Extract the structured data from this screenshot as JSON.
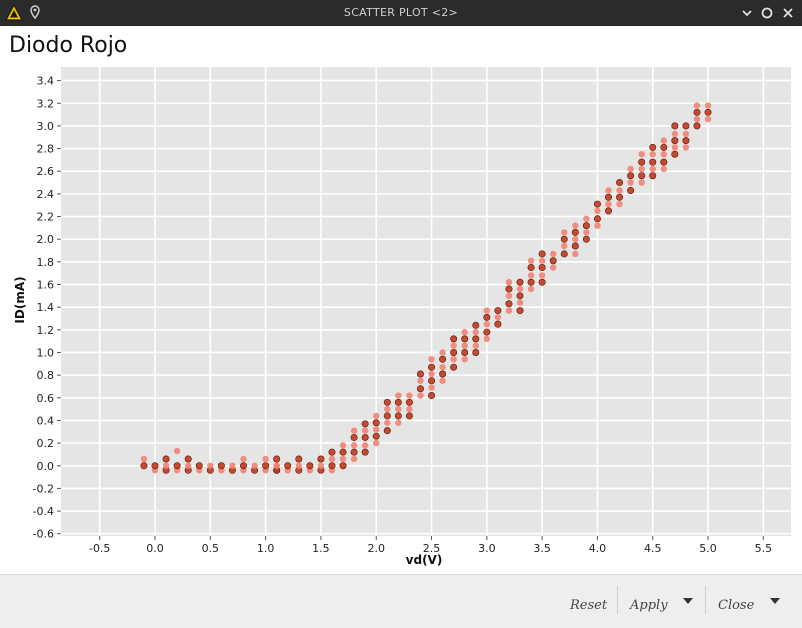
{
  "window": {
    "title": "SCATTER PLOT <2>"
  },
  "footer": {
    "reset_label": "Reset",
    "apply_label": "Apply",
    "close_label": "Close"
  },
  "colors": {
    "panel_bg": "#e5e5e5",
    "point_dark": "#c0391b",
    "point_light": "#ee8374",
    "titlebar": "#2b2b2b"
  },
  "chart_data": {
    "type": "scatter",
    "title": "Diodo Rojo",
    "xlabel": "vd(V)",
    "ylabel": "ID(mA)",
    "xlim": [
      -0.85,
      5.75
    ],
    "ylim": [
      -0.62,
      3.52
    ],
    "xticks": [
      -0.5,
      0.0,
      0.5,
      1.0,
      1.5,
      2.0,
      2.5,
      3.0,
      3.5,
      4.0,
      4.5,
      5.0,
      5.5
    ],
    "xtick_labels": [
      "-0.5",
      "0.0",
      "0.5",
      "1.0",
      "1.5",
      "2.0",
      "2.5",
      "3.0",
      "3.5",
      "4.0",
      "4.5",
      "5.0",
      "5.5"
    ],
    "yticks": [
      -0.6,
      -0.4,
      -0.2,
      0.0,
      0.2,
      0.4,
      0.6,
      0.8,
      1.0,
      1.2,
      1.4,
      1.6,
      1.8,
      2.0,
      2.2,
      2.4,
      2.6,
      2.8,
      3.0,
      3.2,
      3.4
    ],
    "ytick_labels": [
      "-0.6",
      "-0.4",
      "-0.2",
      "0.0",
      "0.2",
      "0.4",
      "0.6",
      "0.8",
      "1.0",
      "1.2",
      "1.4",
      "1.6",
      "1.8",
      "2.0",
      "2.2",
      "2.4",
      "2.6",
      "2.8",
      "3.0",
      "3.2",
      "3.4"
    ],
    "grid": true,
    "legend": false,
    "columns": [
      {
        "x": -0.1,
        "y": [
          0.0,
          0.06
        ]
      },
      {
        "x": 0.0,
        "y": [
          -0.04,
          0.0
        ]
      },
      {
        "x": 0.1,
        "y": [
          -0.04,
          0.0,
          0.06
        ]
      },
      {
        "x": 0.2,
        "y": [
          -0.04,
          0.0,
          0.13
        ]
      },
      {
        "x": 0.3,
        "y": [
          -0.04,
          0.0,
          0.06
        ]
      },
      {
        "x": 0.4,
        "y": [
          -0.04,
          0.0
        ]
      },
      {
        "x": 0.5,
        "y": [
          -0.04,
          0.0
        ]
      },
      {
        "x": 0.6,
        "y": [
          -0.04,
          0.0
        ]
      },
      {
        "x": 0.7,
        "y": [
          -0.04,
          0.0
        ]
      },
      {
        "x": 0.8,
        "y": [
          -0.04,
          0.0,
          0.06
        ]
      },
      {
        "x": 0.9,
        "y": [
          -0.04,
          0.0
        ]
      },
      {
        "x": 1.0,
        "y": [
          -0.04,
          0.0,
          0.06
        ]
      },
      {
        "x": 1.1,
        "y": [
          -0.04,
          0.0
        ]
      },
      {
        "x": 1.1,
        "y": [
          -0.04,
          0.0,
          0.06
        ]
      },
      {
        "x": 1.2,
        "y": [
          -0.04,
          0.0
        ]
      },
      {
        "x": 1.3,
        "y": [
          -0.04,
          0.0,
          0.06
        ]
      },
      {
        "x": 1.4,
        "y": [
          -0.04,
          0.0
        ]
      },
      {
        "x": 1.5,
        "y": [
          -0.04,
          0.0,
          0.06
        ]
      },
      {
        "x": 1.6,
        "y": [
          -0.04,
          0.0,
          0.06,
          0.12
        ]
      },
      {
        "x": 1.7,
        "y": [
          0.0,
          0.06,
          0.12,
          0.18
        ]
      },
      {
        "x": 1.8,
        "y": [
          0.06,
          0.12,
          0.18,
          0.25,
          0.31
        ]
      },
      {
        "x": 1.9,
        "y": [
          0.12,
          0.18,
          0.25,
          0.31,
          0.37
        ]
      },
      {
        "x": 2.0,
        "y": [
          0.2,
          0.26,
          0.32,
          0.38,
          0.44
        ]
      },
      {
        "x": 2.1,
        "y": [
          0.31,
          0.38,
          0.44,
          0.5,
          0.56
        ]
      },
      {
        "x": 2.2,
        "y": [
          0.38,
          0.44,
          0.5,
          0.56,
          0.62
        ]
      },
      {
        "x": 2.3,
        "y": [
          0.44,
          0.5,
          0.56,
          0.62
        ]
      },
      {
        "x": 2.4,
        "y": [
          0.62,
          0.68,
          0.75,
          0.81
        ]
      },
      {
        "x": 2.5,
        "y": [
          0.62,
          0.69,
          0.75,
          0.81,
          0.87,
          0.94
        ]
      },
      {
        "x": 2.6,
        "y": [
          0.75,
          0.81,
          0.87,
          0.94,
          1.0
        ]
      },
      {
        "x": 2.7,
        "y": [
          0.87,
          0.94,
          1.0,
          1.06,
          1.12
        ]
      },
      {
        "x": 2.8,
        "y": [
          0.94,
          1.0,
          1.06,
          1.12,
          1.18
        ]
      },
      {
        "x": 2.9,
        "y": [
          1.0,
          1.06,
          1.12,
          1.18,
          1.24
        ]
      },
      {
        "x": 3.0,
        "y": [
          1.12,
          1.18,
          1.25,
          1.31,
          1.37
        ]
      },
      {
        "x": 3.1,
        "y": [
          1.25,
          1.31,
          1.37
        ]
      },
      {
        "x": 3.2,
        "y": [
          1.37,
          1.43,
          1.5,
          1.56,
          1.62
        ]
      },
      {
        "x": 3.3,
        "y": [
          1.37,
          1.44,
          1.5,
          1.56,
          1.62
        ]
      },
      {
        "x": 3.4,
        "y": [
          1.56,
          1.62,
          1.68,
          1.75,
          1.81
        ]
      },
      {
        "x": 3.5,
        "y": [
          1.62,
          1.68,
          1.75,
          1.81,
          1.87
        ]
      },
      {
        "x": 3.6,
        "y": [
          1.75,
          1.81,
          1.87
        ]
      },
      {
        "x": 3.7,
        "y": [
          1.87,
          1.94,
          2.0,
          2.06
        ]
      },
      {
        "x": 3.8,
        "y": [
          1.87,
          1.94,
          2.0,
          2.06,
          2.12
        ]
      },
      {
        "x": 3.9,
        "y": [
          2.0,
          2.06,
          2.12,
          2.18
        ]
      },
      {
        "x": 4.0,
        "y": [
          2.12,
          2.18,
          2.25,
          2.31
        ]
      },
      {
        "x": 4.1,
        "y": [
          2.25,
          2.31,
          2.37,
          2.43
        ]
      },
      {
        "x": 4.2,
        "y": [
          2.31,
          2.37,
          2.43,
          2.5
        ]
      },
      {
        "x": 4.3,
        "y": [
          2.43,
          2.5,
          2.56,
          2.62
        ]
      },
      {
        "x": 4.4,
        "y": [
          2.5,
          2.56,
          2.62,
          2.68,
          2.75
        ]
      },
      {
        "x": 4.5,
        "y": [
          2.56,
          2.62,
          2.68,
          2.75,
          2.81
        ]
      },
      {
        "x": 4.6,
        "y": [
          2.62,
          2.68,
          2.75,
          2.81,
          2.87
        ]
      },
      {
        "x": 4.7,
        "y": [
          2.75,
          2.81,
          2.87,
          2.93,
          3.0
        ]
      },
      {
        "x": 4.8,
        "y": [
          2.81,
          2.87,
          2.93,
          3.0
        ]
      },
      {
        "x": 4.9,
        "y": [
          3.0,
          3.06,
          3.12,
          3.18
        ]
      },
      {
        "x": 5.0,
        "y": [
          3.06,
          3.12,
          3.18
        ]
      }
    ]
  }
}
